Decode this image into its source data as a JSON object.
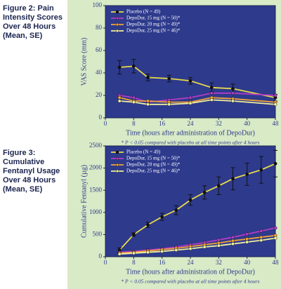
{
  "chart_data": [
    {
      "type": "line",
      "title": "Figure 2: Pain Intensity Scores Over 48 Hours (Mean, SE)",
      "x_label": "Time (hours after administration of DepoDur)",
      "y_label": "VAS Score (mm)",
      "footnote": "* P < 0.05 compared with placebo at all time points after 4 hours",
      "x": [
        4,
        8,
        12,
        18,
        24,
        30,
        36,
        48
      ],
      "xlim": [
        0,
        48
      ],
      "xticks": [
        0,
        8,
        16,
        24,
        32,
        40,
        48
      ],
      "ylim": [
        0,
        100
      ],
      "yticks": [
        0,
        20,
        40,
        60,
        80,
        100
      ],
      "series": [
        {
          "name": "Placebo (N = 49)",
          "color": "#e8dc4a",
          "values": [
            45,
            46,
            36,
            35,
            33,
            27,
            26,
            18
          ],
          "errors": [
            6,
            6,
            3,
            3,
            3,
            4,
            4,
            3
          ]
        },
        {
          "name": "DepoDur, 15 mg (N = 50)*",
          "color": "#b23cc4",
          "values": [
            20,
            18,
            14,
            16,
            18,
            22,
            22,
            20
          ]
        },
        {
          "name": "DepoDur, 20 mg (N = 49)*",
          "color": "#f2a33a",
          "values": [
            18,
            15,
            15,
            14,
            14,
            18,
            17,
            14
          ]
        },
        {
          "name": "DepoDur, 25 mg (N = 46)*",
          "color": "#eef0a0",
          "values": [
            15,
            14,
            12,
            12,
            13,
            16,
            15,
            12
          ]
        }
      ]
    },
    {
      "type": "line",
      "title": "Figure 3: Cumulative Fentanyl Usage Over 48 Hours (Mean, SE)",
      "x_label": "Time (hours after administration of DepoDur)",
      "y_label": "Cumulative Fentanyl (µg)",
      "footnote": "* P < 0.05 compared with placebo at all time points after 4 hours",
      "x": [
        4,
        8,
        12,
        16,
        20,
        24,
        28,
        32,
        36,
        40,
        44,
        48
      ],
      "xlim": [
        0,
        48
      ],
      "xticks": [
        0,
        8,
        16,
        24,
        32,
        40,
        48
      ],
      "ylim": [
        0,
        2500
      ],
      "yticks": [
        0,
        500,
        1000,
        1500,
        2000,
        2500
      ],
      "series": [
        {
          "name": "Placebo (N = 49)",
          "color": "#e8dc4a",
          "values": [
            150,
            500,
            720,
            900,
            1050,
            1280,
            1450,
            1600,
            1760,
            1860,
            1960,
            2100
          ],
          "errors": [
            50,
            40,
            60,
            80,
            100,
            120,
            150,
            200,
            250,
            250,
            300,
            300
          ]
        },
        {
          "name": "DepoDur, 15 mg (N = 50)*",
          "color": "#b23cc4",
          "values": [
            100,
            120,
            150,
            180,
            220,
            270,
            320,
            380,
            440,
            510,
            580,
            650
          ]
        },
        {
          "name": "DepoDur, 20 mg (N = 49)*",
          "color": "#f2a33a",
          "values": [
            80,
            100,
            130,
            160,
            190,
            230,
            270,
            310,
            360,
            400,
            440,
            480
          ]
        },
        {
          "name": "DepoDur, 25 mg (N = 46)*",
          "color": "#eef0a0",
          "values": [
            60,
            80,
            100,
            120,
            150,
            180,
            220,
            250,
            290,
            330,
            370,
            420
          ]
        }
      ]
    }
  ]
}
